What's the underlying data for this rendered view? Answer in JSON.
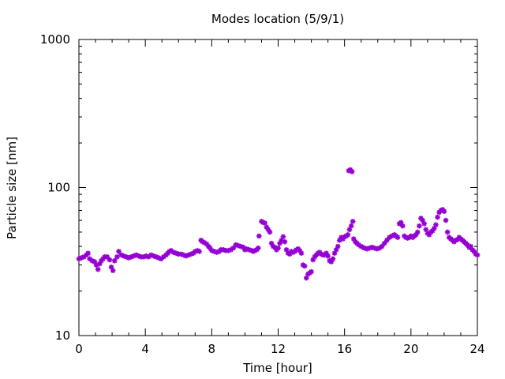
{
  "chart_data": {
    "type": "scatter",
    "title": "Modes location (5/9/1)",
    "xlabel": "Time [hour]",
    "ylabel": "Particle size [nm]",
    "xlim": [
      0,
      24
    ],
    "ylim": [
      10,
      1000
    ],
    "yscale": "log",
    "x_ticks": [
      0,
      4,
      8,
      12,
      16,
      20,
      24
    ],
    "x_tick_labels": [
      "0",
      "4",
      "8",
      "12",
      "16",
      "20",
      "24"
    ],
    "y_ticks": [
      10,
      100,
      1000
    ],
    "y_tick_labels": [
      "10",
      "100",
      "1000"
    ],
    "grid": false,
    "marker": "asterisk",
    "series_color": "#9400d3",
    "points": [
      [
        0.0,
        33
      ],
      [
        0.15,
        33.5
      ],
      [
        0.3,
        34
      ],
      [
        0.45,
        35
      ],
      [
        0.55,
        36
      ],
      [
        0.65,
        33
      ],
      [
        0.8,
        32
      ],
      [
        0.95,
        31.5
      ],
      [
        1.05,
        30
      ],
      [
        1.15,
        28
      ],
      [
        1.25,
        30.5
      ],
      [
        1.35,
        32
      ],
      [
        1.45,
        33
      ],
      [
        1.55,
        34
      ],
      [
        1.7,
        34
      ],
      [
        1.85,
        32.5
      ],
      [
        1.95,
        29
      ],
      [
        2.05,
        27.5
      ],
      [
        2.15,
        32
      ],
      [
        2.3,
        34
      ],
      [
        2.4,
        37
      ],
      [
        2.55,
        35
      ],
      [
        2.7,
        34.5
      ],
      [
        2.85,
        34
      ],
      [
        3.0,
        33.5
      ],
      [
        3.15,
        34
      ],
      [
        3.3,
        34.5
      ],
      [
        3.45,
        35
      ],
      [
        3.6,
        34.5
      ],
      [
        3.75,
        34
      ],
      [
        3.9,
        34
      ],
      [
        4.05,
        34.5
      ],
      [
        4.2,
        34
      ],
      [
        4.35,
        35
      ],
      [
        4.5,
        34.5
      ],
      [
        4.65,
        34
      ],
      [
        4.8,
        33.5
      ],
      [
        4.95,
        33
      ],
      [
        5.1,
        34
      ],
      [
        5.25,
        35
      ],
      [
        5.35,
        36
      ],
      [
        5.45,
        37
      ],
      [
        5.55,
        37.5
      ],
      [
        5.7,
        36.5
      ],
      [
        5.85,
        36
      ],
      [
        6.0,
        35.5
      ],
      [
        6.15,
        35.5
      ],
      [
        6.3,
        35
      ],
      [
        6.45,
        34.5
      ],
      [
        6.6,
        35
      ],
      [
        6.75,
        35.5
      ],
      [
        6.9,
        36
      ],
      [
        7.0,
        37
      ],
      [
        7.15,
        37.5
      ],
      [
        7.25,
        37
      ],
      [
        7.35,
        44
      ],
      [
        7.45,
        43
      ],
      [
        7.55,
        42.5
      ],
      [
        7.7,
        41.5
      ],
      [
        7.8,
        40
      ],
      [
        7.9,
        39
      ],
      [
        8.0,
        37.5
      ],
      [
        8.15,
        37
      ],
      [
        8.3,
        36.5
      ],
      [
        8.45,
        37
      ],
      [
        8.55,
        38
      ],
      [
        8.7,
        38
      ],
      [
        8.85,
        37.5
      ],
      [
        9.0,
        37.5
      ],
      [
        9.15,
        38
      ],
      [
        9.3,
        39
      ],
      [
        9.45,
        41
      ],
      [
        9.6,
        40.5
      ],
      [
        9.75,
        40
      ],
      [
        9.9,
        39.5
      ],
      [
        10.0,
        38
      ],
      [
        10.1,
        38.5
      ],
      [
        10.25,
        38
      ],
      [
        10.4,
        37.5
      ],
      [
        10.5,
        37
      ],
      [
        10.6,
        37.5
      ],
      [
        10.7,
        38
      ],
      [
        10.8,
        39
      ],
      [
        10.85,
        47
      ],
      [
        11.0,
        59
      ],
      [
        11.1,
        58
      ],
      [
        11.2,
        57.5
      ],
      [
        11.3,
        54
      ],
      [
        11.4,
        52
      ],
      [
        11.5,
        50
      ],
      [
        11.6,
        42
      ],
      [
        11.7,
        40
      ],
      [
        11.8,
        39.5
      ],
      [
        11.9,
        38
      ],
      [
        12.0,
        39
      ],
      [
        12.1,
        42
      ],
      [
        12.2,
        44
      ],
      [
        12.3,
        46.5
      ],
      [
        12.4,
        43
      ],
      [
        12.5,
        38
      ],
      [
        12.6,
        36
      ],
      [
        12.7,
        35.5
      ],
      [
        12.8,
        37
      ],
      [
        12.9,
        36.5
      ],
      [
        13.0,
        37
      ],
      [
        13.1,
        38
      ],
      [
        13.2,
        38.5
      ],
      [
        13.3,
        37.5
      ],
      [
        13.4,
        36
      ],
      [
        13.5,
        30
      ],
      [
        13.6,
        29.5
      ],
      [
        13.7,
        24.5
      ],
      [
        13.8,
        26
      ],
      [
        13.9,
        26.5
      ],
      [
        14.0,
        27
      ],
      [
        14.1,
        32.5
      ],
      [
        14.2,
        34
      ],
      [
        14.3,
        35
      ],
      [
        14.4,
        36
      ],
      [
        14.5,
        36.5
      ],
      [
        14.6,
        35.5
      ],
      [
        14.7,
        35
      ],
      [
        14.8,
        35
      ],
      [
        14.9,
        36
      ],
      [
        15.0,
        34.5
      ],
      [
        15.1,
        32
      ],
      [
        15.2,
        31.5
      ],
      [
        15.3,
        33
      ],
      [
        15.4,
        36
      ],
      [
        15.5,
        38
      ],
      [
        15.6,
        40
      ],
      [
        15.7,
        44
      ],
      [
        15.8,
        46
      ],
      [
        15.9,
        45
      ],
      [
        16.0,
        46.5
      ],
      [
        16.1,
        47
      ],
      [
        16.2,
        48
      ],
      [
        16.3,
        52
      ],
      [
        16.4,
        55
      ],
      [
        16.5,
        59
      ],
      [
        16.25,
        130
      ],
      [
        16.35,
        132
      ],
      [
        16.45,
        128
      ],
      [
        16.55,
        45
      ],
      [
        16.65,
        43
      ],
      [
        16.75,
        42
      ],
      [
        16.85,
        41
      ],
      [
        17.0,
        40
      ],
      [
        17.1,
        39.5
      ],
      [
        17.2,
        39
      ],
      [
        17.35,
        38.5
      ],
      [
        17.5,
        39
      ],
      [
        17.65,
        39.5
      ],
      [
        17.8,
        39
      ],
      [
        17.95,
        38.5
      ],
      [
        18.1,
        39
      ],
      [
        18.25,
        40
      ],
      [
        18.4,
        42
      ],
      [
        18.55,
        44
      ],
      [
        18.7,
        46
      ],
      [
        18.85,
        47
      ],
      [
        19.0,
        48
      ],
      [
        19.1,
        47
      ],
      [
        19.2,
        46
      ],
      [
        19.3,
        57
      ],
      [
        19.4,
        58
      ],
      [
        19.5,
        55
      ],
      [
        19.6,
        47
      ],
      [
        19.7,
        46
      ],
      [
        19.8,
        45.5
      ],
      [
        19.9,
        46
      ],
      [
        20.0,
        47
      ],
      [
        20.1,
        46
      ],
      [
        20.2,
        47
      ],
      [
        20.3,
        48
      ],
      [
        20.4,
        50
      ],
      [
        20.5,
        55
      ],
      [
        20.6,
        62
      ],
      [
        20.7,
        60
      ],
      [
        20.8,
        57
      ],
      [
        20.9,
        52
      ],
      [
        21.0,
        49
      ],
      [
        21.1,
        48
      ],
      [
        21.2,
        50
      ],
      [
        21.3,
        51
      ],
      [
        21.4,
        53
      ],
      [
        21.5,
        56
      ],
      [
        21.6,
        63
      ],
      [
        21.7,
        68
      ],
      [
        21.8,
        70
      ],
      [
        21.9,
        71
      ],
      [
        22.0,
        69
      ],
      [
        22.1,
        60
      ],
      [
        22.2,
        50
      ],
      [
        22.3,
        46
      ],
      [
        22.4,
        45
      ],
      [
        22.5,
        44
      ],
      [
        22.6,
        43
      ],
      [
        22.7,
        44
      ],
      [
        22.8,
        44.5
      ],
      [
        22.9,
        46
      ],
      [
        23.0,
        45
      ],
      [
        23.1,
        44
      ],
      [
        23.2,
        43
      ],
      [
        23.3,
        42
      ],
      [
        23.4,
        41
      ],
      [
        23.5,
        39.5
      ],
      [
        23.6,
        40
      ],
      [
        23.7,
        38
      ],
      [
        23.8,
        37
      ],
      [
        23.9,
        35.5
      ],
      [
        24.0,
        35
      ]
    ]
  }
}
